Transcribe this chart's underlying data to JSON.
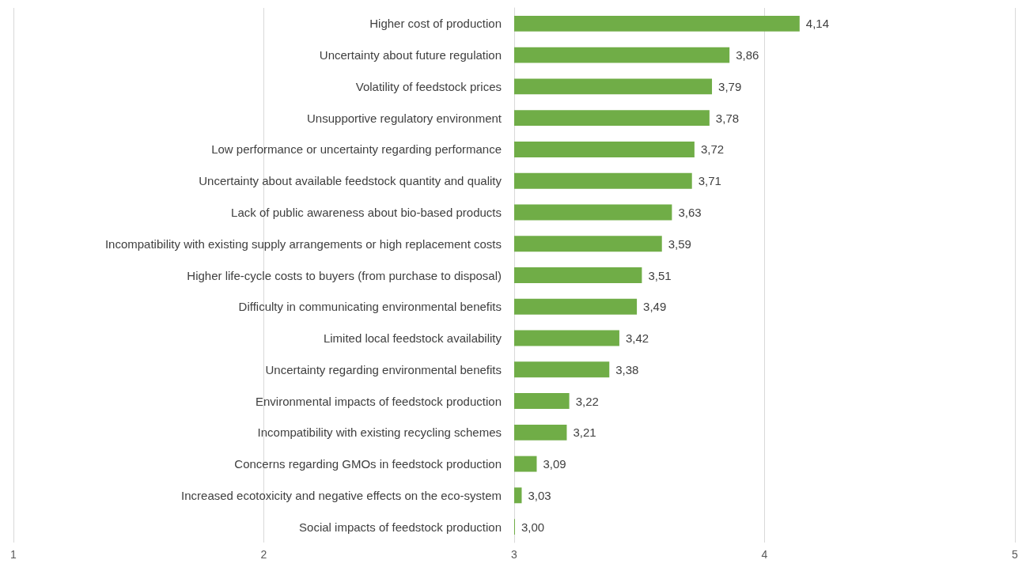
{
  "chart_data": {
    "type": "bar",
    "orientation": "horizontal",
    "categories": [
      "Higher cost of production",
      "Uncertainty about future regulation",
      "Volatility of feedstock prices",
      "Unsupportive regulatory environment",
      "Low performance or uncertainty regarding performance",
      "Uncertainty about available feedstock quantity and quality",
      "Lack of public awareness about bio-based products",
      "Incompatibility with existing supply arrangements or high replacement costs",
      "Higher life-cycle costs to buyers (from purchase to disposal)",
      "Difficulty in communicating environmental benefits",
      "Limited local feedstock availability",
      "Uncertainty regarding environmental benefits",
      "Environmental impacts of feedstock production",
      "Incompatibility with existing recycling schemes",
      "Concerns regarding GMOs in feedstock production",
      "Increased ecotoxicity and negative effects on the eco-system",
      "Social impacts of feedstock production"
    ],
    "base": [
      3,
      3,
      3,
      3,
      3,
      3,
      3,
      3,
      3,
      3,
      3,
      3,
      3,
      3,
      3,
      3,
      3
    ],
    "values": [
      1.14,
      0.86,
      0.79,
      0.78,
      0.72,
      0.71,
      0.63,
      0.59,
      0.51,
      0.49,
      0.42,
      0.38,
      0.22,
      0.21,
      0.09,
      0.03,
      0
    ],
    "value_labels": [
      "4,14",
      "3,86",
      "3,79",
      "3,78",
      "3,72",
      "3,71",
      "3,63",
      "3,59",
      "3,51",
      "3,49",
      "3,42",
      "3,38",
      "3,22",
      "3,21",
      "3,09",
      "3,03",
      "3,00"
    ],
    "color": "#70ad47",
    "xlim": [
      1,
      5
    ],
    "xticks": [
      1,
      2,
      3,
      4,
      5
    ],
    "grid": "x"
  }
}
